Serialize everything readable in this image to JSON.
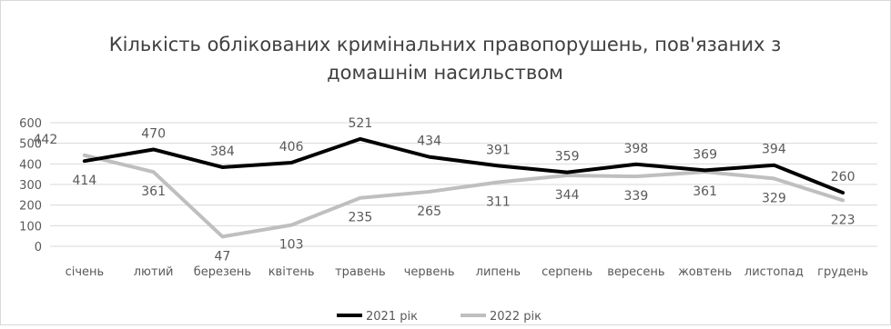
{
  "chart_data": {
    "type": "line",
    "title_line1": "Кількість облікованих кримінальних правопорушень, пов'язаних з",
    "title_line2": "домашнім насильством",
    "categories": [
      "січень",
      "лютий",
      "березень",
      "квітень",
      "травень",
      "червень",
      "липень",
      "серпень",
      "вересень",
      "жовтень",
      "листопад",
      "грудень"
    ],
    "series": [
      {
        "name": "2021 рік",
        "color": "#000000",
        "values": [
          414,
          470,
          384,
          406,
          521,
          434,
          391,
          359,
          398,
          369,
          394,
          260
        ]
      },
      {
        "name": "2022 рік",
        "color": "#bfbfbf",
        "values": [
          442,
          361,
          47,
          103,
          235,
          265,
          311,
          344,
          339,
          361,
          329,
          223
        ]
      }
    ],
    "ylim": [
      0,
      600
    ],
    "yticks": [
      0,
      100,
      200,
      300,
      400,
      500,
      600
    ],
    "grid": true,
    "legend_position": "bottom"
  }
}
